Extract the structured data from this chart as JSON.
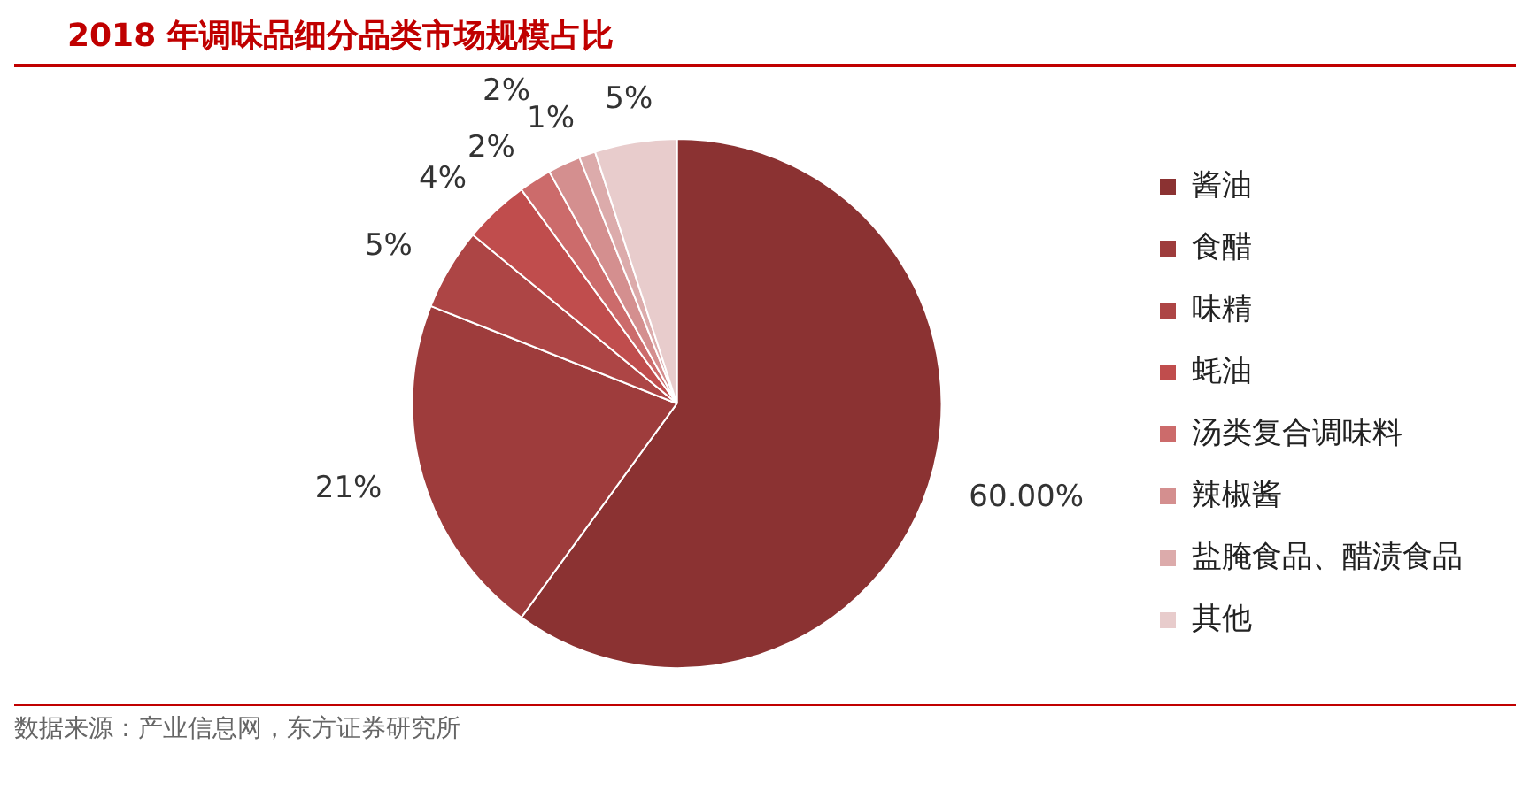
{
  "chart_data": {
    "type": "pie",
    "title": "2018 年调味品细分品类市场规模占比",
    "categories": [
      "酱油",
      "食醋",
      "味精",
      "蚝油",
      "汤类复合调味料",
      "辣椒酱",
      "盐腌食品、醋渍食品",
      "其他"
    ],
    "values": [
      60,
      21,
      5,
      4,
      2,
      2,
      1,
      5
    ],
    "value_labels": [
      "60.00%",
      "21%",
      "5%",
      "4%",
      "2%",
      "2%",
      "1%",
      "5%"
    ],
    "colors": [
      "#8b3232",
      "#9e3c3c",
      "#ad4545",
      "#c04d4d",
      "#cc6b6b",
      "#d48f8f",
      "#dcabab",
      "#e8cccc"
    ],
    "legend": "right",
    "annotations": [
      "数据来源：产业信息网，东方证券研究所"
    ]
  }
}
